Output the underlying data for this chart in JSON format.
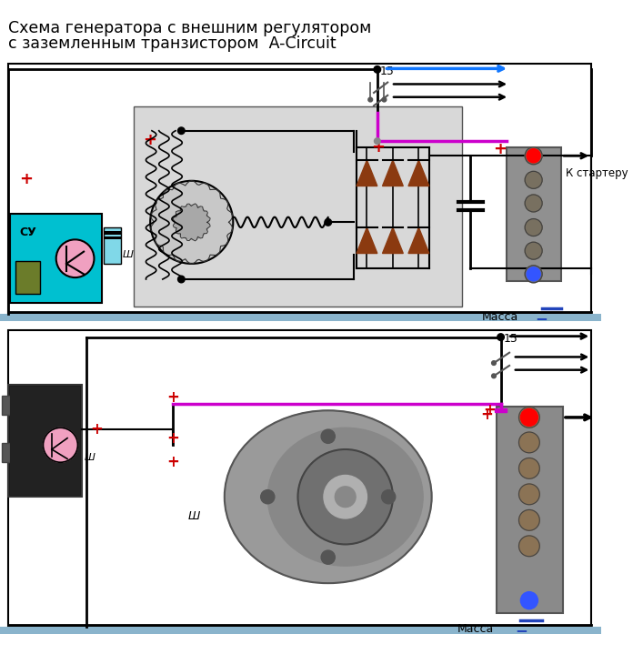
{
  "title_line1": "Схема генератора с внешним регулятором",
  "title_line2": "с заземленным транзистором  A-Circuit",
  "title_fontsize": 12.5,
  "bg_color": "#ffffff",
  "label_massa": "Масса",
  "label_k_starteru": "К стартеру",
  "label_15": "15",
  "label_sh": "Ш",
  "label_su": "СУ",
  "colors": {
    "black": "#000000",
    "red": "#cc0000",
    "blue": "#0066cc",
    "magenta": "#cc00cc",
    "cyan": "#00aacc",
    "gray": "#888888",
    "light_gray": "#d0d0d0",
    "dark_gray": "#555555",
    "arrow_blue": "#1177ff",
    "arrow_black": "#000000",
    "plus_red": "#cc0000",
    "minus_blue": "#2244bb",
    "diode_brown": "#8B3A10",
    "divider": "#8ab4cc",
    "cyan_box": "#00c0d0",
    "olive": "#6b7c2a"
  }
}
